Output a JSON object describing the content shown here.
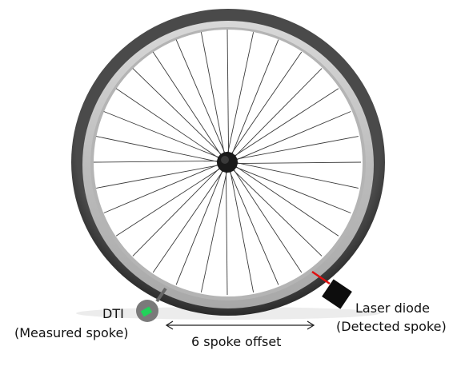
{
  "labels": {
    "dti_title": "DTI",
    "dti_subtitle": "(Measured spoke)",
    "laser_title": "Laser diode",
    "laser_subtitle": "(Detected spoke)",
    "offset": "6 spoke offset"
  },
  "wheel": {
    "spoke_count": 32
  },
  "colors": {
    "tire": "#3a3a3a",
    "rim": "#c8c8c8",
    "spoke": "#3a3a3a",
    "hub": "#1a1a1a",
    "laser_beam": "#e01010",
    "laser_body": "#0d0d0d",
    "dti_body": "#777777",
    "dti_indicator": "#22d35a"
  }
}
